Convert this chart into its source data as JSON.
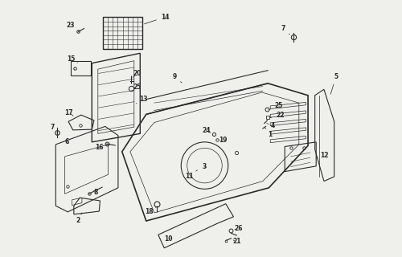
{
  "bg_color": "#efefec",
  "line_color": "#2a2a2a",
  "lw": 0.8,
  "parts_labels": [
    [
      "14",
      [
        0.38,
        0.945
      ],
      [
        0.305,
        0.92
      ]
    ],
    [
      "23",
      [
        0.068,
        0.918
      ],
      [
        0.098,
        0.898
      ]
    ],
    [
      "15",
      [
        0.068,
        0.805
      ],
      [
        0.09,
        0.793
      ]
    ],
    [
      "20",
      [
        0.288,
        0.757
      ],
      [
        0.268,
        0.74
      ]
    ],
    [
      "25",
      [
        0.288,
        0.712
      ],
      [
        0.272,
        0.708
      ]
    ],
    [
      "13",
      [
        0.308,
        0.672
      ],
      [
        0.285,
        0.658
      ]
    ],
    [
      "17",
      [
        0.062,
        0.628
      ],
      [
        0.082,
        0.612
      ]
    ],
    [
      "16",
      [
        0.162,
        0.512
      ],
      [
        0.188,
        0.522
      ]
    ],
    [
      "9",
      [
        0.412,
        0.748
      ],
      [
        0.442,
        0.722
      ]
    ],
    [
      "7",
      [
        0.772,
        0.908
      ],
      [
        0.8,
        0.882
      ]
    ],
    [
      "5",
      [
        0.948,
        0.748
      ],
      [
        0.928,
        0.682
      ]
    ],
    [
      "25",
      [
        0.758,
        0.65
      ],
      [
        0.724,
        0.637
      ]
    ],
    [
      "22",
      [
        0.762,
        0.62
      ],
      [
        0.728,
        0.61
      ]
    ],
    [
      "4",
      [
        0.738,
        0.585
      ],
      [
        0.718,
        0.592
      ]
    ],
    [
      "1",
      [
        0.73,
        0.555
      ],
      [
        0.712,
        0.578
      ]
    ],
    [
      "12",
      [
        0.908,
        0.485
      ],
      [
        0.882,
        0.477
      ]
    ],
    [
      "24",
      [
        0.518,
        0.568
      ],
      [
        0.538,
        0.557
      ]
    ],
    [
      "19",
      [
        0.572,
        0.537
      ],
      [
        0.557,
        0.537
      ]
    ],
    [
      "3",
      [
        0.512,
        0.447
      ],
      [
        0.518,
        0.447
      ]
    ],
    [
      "11",
      [
        0.462,
        0.417
      ],
      [
        0.488,
        0.437
      ]
    ],
    [
      "7",
      [
        0.008,
        0.58
      ],
      [
        0.022,
        0.56
      ]
    ],
    [
      "6",
      [
        0.055,
        0.53
      ],
      [
        0.068,
        0.522
      ]
    ],
    [
      "2",
      [
        0.092,
        0.27
      ],
      [
        0.105,
        0.295
      ]
    ],
    [
      "8",
      [
        0.152,
        0.363
      ],
      [
        0.138,
        0.372
      ]
    ],
    [
      "18",
      [
        0.328,
        0.3
      ],
      [
        0.35,
        0.313
      ]
    ],
    [
      "10",
      [
        0.392,
        0.207
      ],
      [
        0.408,
        0.215
      ]
    ],
    [
      "26",
      [
        0.625,
        0.243
      ],
      [
        0.605,
        0.237
      ]
    ],
    [
      "21",
      [
        0.618,
        0.2
      ],
      [
        0.6,
        0.207
      ]
    ]
  ]
}
